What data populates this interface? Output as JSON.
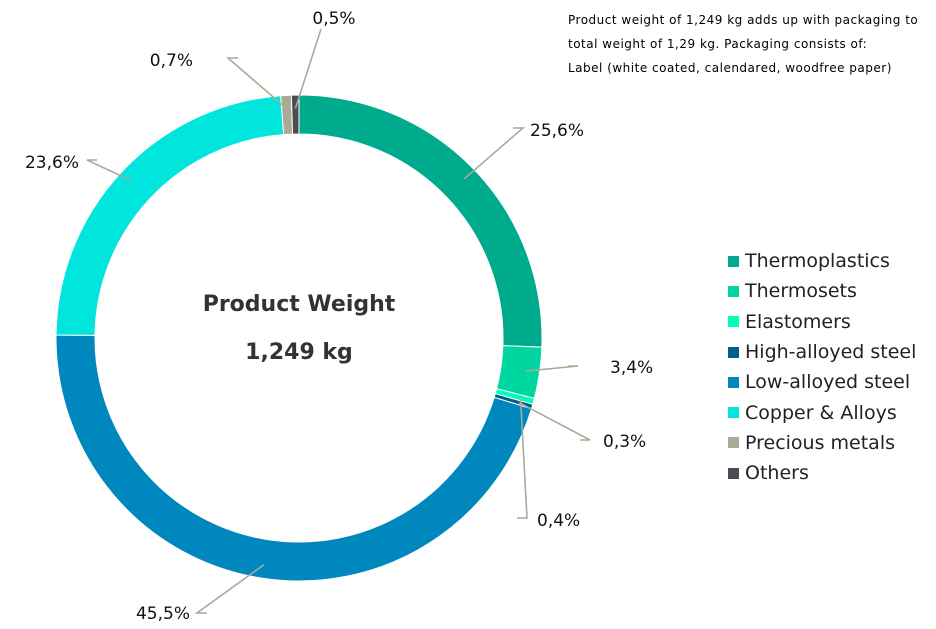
{
  "note": {
    "lines": [
      "Product weight of 1,249 kg adds up with packaging to",
      "total weight of 1,29 kg. Packaging consists of:",
      "Label (white coated, calendared, woodfree paper)"
    ]
  },
  "chart_data": {
    "type": "pie",
    "style": "donut",
    "center_label": [
      "Product Weight",
      "1,249 kg"
    ],
    "legend_position": "right",
    "series": [
      {
        "name": "Thermoplastics",
        "value": 25.6,
        "label": "25,6%",
        "color": "#00AA8C"
      },
      {
        "name": "Thermosets",
        "value": 3.4,
        "label": "3,4%",
        "color": "#00D7A0"
      },
      {
        "name": "Elastomers",
        "value": 0.4,
        "label": "0,4%",
        "color": "#00FFB9"
      },
      {
        "name": "High-alloyed steel",
        "value": 0.3,
        "label": "0,3%",
        "color": "#005F87"
      },
      {
        "name": "Low-alloyed steel",
        "value": 45.5,
        "label": "45,5%",
        "color": "#0087BE"
      },
      {
        "name": "Copper & Alloys",
        "value": 23.6,
        "label": "23,6%",
        "color": "#00E6DC"
      },
      {
        "name": "Precious metals",
        "value": 0.7,
        "label": "0,7%",
        "color": "#AAAA96"
      },
      {
        "name": "Others",
        "value": 0.5,
        "label": "0,5%",
        "color": "#4C4C55"
      }
    ]
  }
}
